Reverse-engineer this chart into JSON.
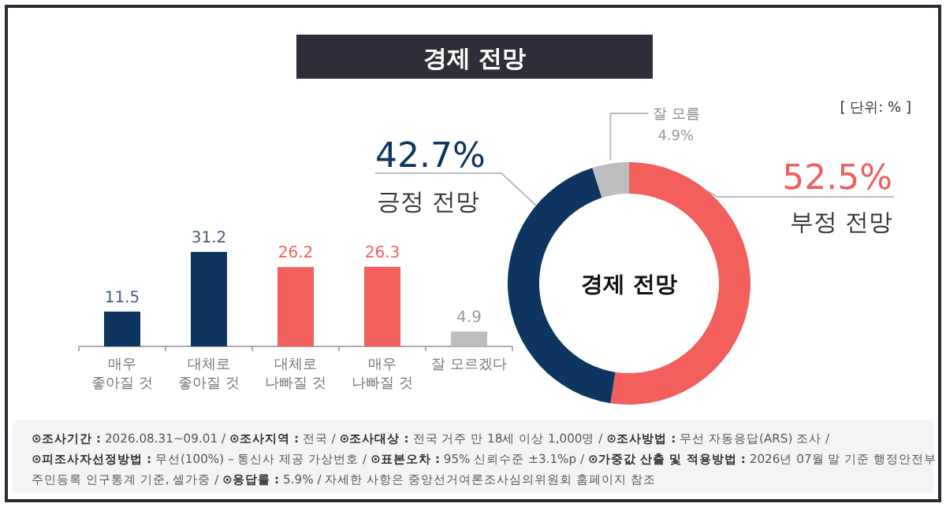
{
  "chart_data": [
    {
      "type": "bar",
      "title": "경제 전망",
      "categories": [
        "매우 좋아질 것",
        "대체로 좋아질 것",
        "대체로 나빠질 것",
        "매우 나빠질 것",
        "잘 모르겠다"
      ],
      "values": [
        11.5,
        31.2,
        26.2,
        26.3,
        4.9
      ],
      "colors": [
        "#0d3560",
        "#0d3560",
        "#f25f5c",
        "#f25f5c",
        "#bdbdbd"
      ],
      "data_labels": true,
      "annotations": [
        "⊙조사기간 : 2026.08.31~09.01 / ⊙조사지역 : 전국 / ⊙조사대상 : 전국 거주 만 18세 이상 1,000명 / ⊙조사방법 : 무선 자동응답(ARS) 조사 /",
        "⊙피조사자선정방법 : 무선(100%) – 통신사 제공 가상번호 / ⊙표본오차 : 95% 신뢰수준 ±3.1%p / ⊙가중값 산출 및 적용방법 : 2026년 07월 말 기준 행정안전부",
        "주민등록 인구통계 기준, 셀가중 / ⊙응답률 : 5.9% / 자세한 사항은 중앙선거여론조사심의위원회 홈페이지 참조"
      ]
    },
    {
      "type": "donut",
      "title": "경제 전망",
      "categories": [
        "부정 전망",
        "긍정 전망",
        "잘 모름"
      ],
      "values": [
        52.5,
        42.7,
        4.9
      ],
      "colors": [
        "#f25f5c",
        "#0d3560",
        "#bdbdbd"
      ],
      "value_labels": [
        "52.5%",
        "42.7%",
        "4.9%"
      ],
      "annotations": [
        "[ 단위: % ]"
      ]
    }
  ]
}
